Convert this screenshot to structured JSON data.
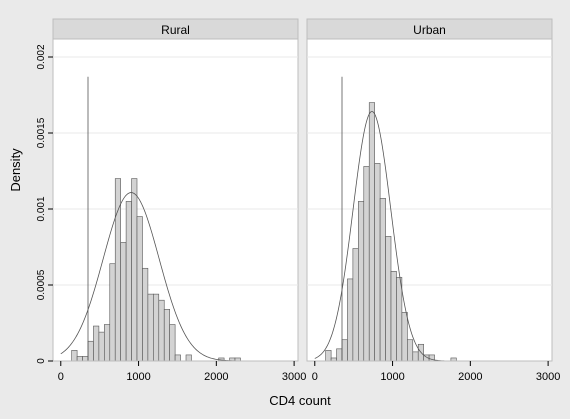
{
  "chart_data": {
    "type": "bar",
    "ylabel": "Density",
    "xlabel": "CD4 count",
    "xlim": [
      -100,
      3050
    ],
    "ylim": [
      0,
      0.002
    ],
    "xticks": [
      0,
      1000,
      2000,
      3000
    ],
    "yticks": [
      0,
      0.0005,
      0.001,
      0.0015,
      0.002
    ],
    "ytick_labels": [
      "0",
      "0.0005",
      "0.001",
      "0.0015",
      "0.002"
    ],
    "bin_width": 70,
    "reference_line_x": 350,
    "reference_line_y": 0.00187,
    "panels": [
      {
        "title": "Rural",
        "bins": [
          {
            "x": 140,
            "y": 7e-05
          },
          {
            "x": 210,
            "y": 3e-05
          },
          {
            "x": 280,
            "y": 3e-05
          },
          {
            "x": 350,
            "y": 0.00013
          },
          {
            "x": 420,
            "y": 0.00023
          },
          {
            "x": 490,
            "y": 0.00019
          },
          {
            "x": 560,
            "y": 0.00024
          },
          {
            "x": 630,
            "y": 0.00064
          },
          {
            "x": 700,
            "y": 0.0012
          },
          {
            "x": 770,
            "y": 0.00078
          },
          {
            "x": 840,
            "y": 0.00105
          },
          {
            "x": 910,
            "y": 0.0012
          },
          {
            "x": 980,
            "y": 0.00095
          },
          {
            "x": 1050,
            "y": 0.00061
          },
          {
            "x": 1120,
            "y": 0.00044
          },
          {
            "x": 1190,
            "y": 0.00044
          },
          {
            "x": 1260,
            "y": 0.0004
          },
          {
            "x": 1330,
            "y": 0.00034
          },
          {
            "x": 1400,
            "y": 0.00024
          },
          {
            "x": 1470,
            "y": 4e-05
          },
          {
            "x": 1610,
            "y": 4e-05
          },
          {
            "x": 2030,
            "y": 2e-05
          },
          {
            "x": 2170,
            "y": 2e-05
          },
          {
            "x": 2240,
            "y": 2e-05
          }
        ],
        "curve": {
          "mean": 905,
          "sd": 360
        }
      },
      {
        "title": "Urban",
        "bins": [
          {
            "x": 140,
            "y": 7e-05
          },
          {
            "x": 210,
            "y": 2e-05
          },
          {
            "x": 280,
            "y": 8e-05
          },
          {
            "x": 350,
            "y": 0.00014
          },
          {
            "x": 420,
            "y": 0.00054
          },
          {
            "x": 490,
            "y": 0.00074
          },
          {
            "x": 560,
            "y": 0.00105
          },
          {
            "x": 630,
            "y": 0.00128
          },
          {
            "x": 700,
            "y": 0.0017
          },
          {
            "x": 770,
            "y": 0.0013
          },
          {
            "x": 840,
            "y": 0.00107
          },
          {
            "x": 910,
            "y": 0.00082
          },
          {
            "x": 980,
            "y": 0.00059
          },
          {
            "x": 1050,
            "y": 0.00055
          },
          {
            "x": 1120,
            "y": 0.00032
          },
          {
            "x": 1190,
            "y": 0.00014
          },
          {
            "x": 1260,
            "y": 6e-05
          },
          {
            "x": 1330,
            "y": 0.00011
          },
          {
            "x": 1400,
            "y": 4e-05
          },
          {
            "x": 1470,
            "y": 4e-05
          },
          {
            "x": 1750,
            "y": 2e-05
          }
        ],
        "curve": {
          "mean": 735,
          "sd": 243
        }
      }
    ]
  }
}
